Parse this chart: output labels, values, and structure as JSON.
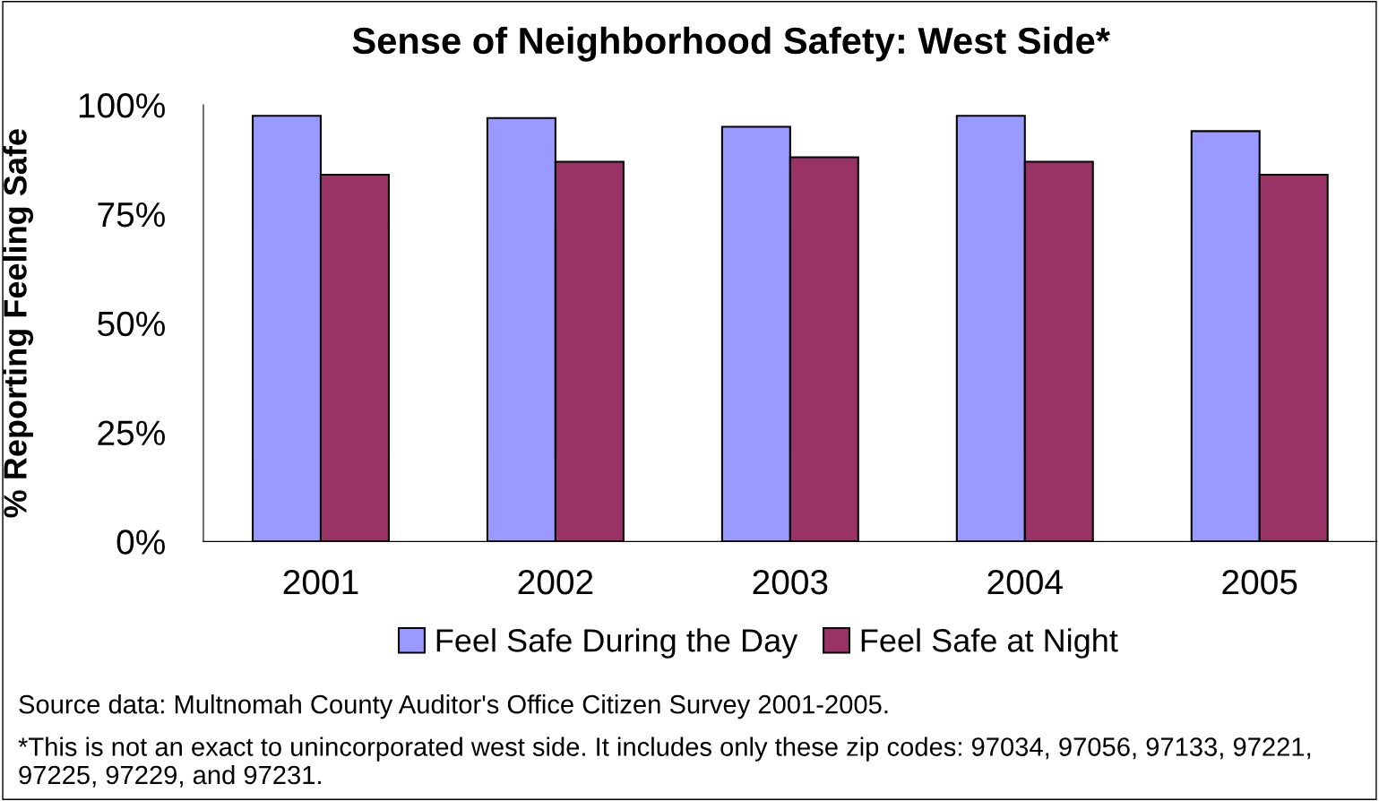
{
  "chart_data": {
    "type": "bar",
    "title": "Sense of Neighborhood Safety: West Side*",
    "ylabel": "% Reporting Feeling Safe",
    "categories": [
      "2001",
      "2002",
      "2003",
      "2004",
      "2005"
    ],
    "series": [
      {
        "name": "Feel Safe During the Day",
        "color": "#9999ff",
        "values": [
          97.5,
          97,
          95,
          97.5,
          94
        ]
      },
      {
        "name": "Feel Safe at Night",
        "color": "#993366",
        "values": [
          84,
          87,
          88,
          87,
          84
        ]
      }
    ],
    "ylim": [
      0,
      100
    ],
    "yticks": [
      {
        "value": 0,
        "label": "0%"
      },
      {
        "value": 25,
        "label": "25%"
      },
      {
        "value": 50,
        "label": "50%"
      },
      {
        "value": 75,
        "label": "75%"
      },
      {
        "value": 100,
        "label": "100%"
      }
    ],
    "grid": false,
    "legend": "bottom",
    "annotations": [
      "Source data: Multnomah County Auditor's Office Citizen Survey 2001-2005.",
      "*This is not an exact to unincorporated west side. It includes only these zip codes: 97034, 97056, 97133, 97221, 97225, 97229, and 97231."
    ]
  }
}
